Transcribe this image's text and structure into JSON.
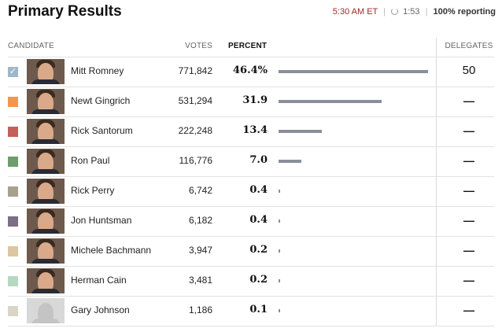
{
  "header": {
    "title": "Primary Results",
    "time": "5:30 AM ET",
    "refresh_countdown": "1:53",
    "reporting": "100% reporting"
  },
  "columns": {
    "candidate": "CANDIDATE",
    "votes": "VOTES",
    "percent": "PERCENT",
    "delegates": "DELEGATES"
  },
  "colors": {
    "bar": "#8a8f99",
    "time": "#a02a2a"
  },
  "candidates": [
    {
      "name": "Mitt Romney",
      "votes": "771,842",
      "percent": "46.4%",
      "percent_value": 46.4,
      "delegates": "50",
      "color": "#9fb8c9",
      "checked": true,
      "placeholder": false
    },
    {
      "name": "Newt Gingrich",
      "votes": "531,294",
      "percent": "31.9",
      "percent_value": 31.9,
      "delegates": "—",
      "color": "#f0964e",
      "checked": false,
      "placeholder": false
    },
    {
      "name": "Rick Santorum",
      "votes": "222,248",
      "percent": "13.4",
      "percent_value": 13.4,
      "delegates": "—",
      "color": "#c2605a",
      "checked": false,
      "placeholder": false
    },
    {
      "name": "Ron Paul",
      "votes": "116,776",
      "percent": "7.0",
      "percent_value": 7.0,
      "delegates": "—",
      "color": "#6f9c6b",
      "checked": false,
      "placeholder": false
    },
    {
      "name": "Rick Perry",
      "votes": "6,742",
      "percent": "0.4",
      "percent_value": 0.4,
      "delegates": "—",
      "color": "#a8a08e",
      "checked": false,
      "placeholder": false
    },
    {
      "name": "Jon Huntsman",
      "votes": "6,182",
      "percent": "0.4",
      "percent_value": 0.4,
      "delegates": "—",
      "color": "#7c6e84",
      "checked": false,
      "placeholder": false
    },
    {
      "name": "Michele Bachmann",
      "votes": "3,947",
      "percent": "0.2",
      "percent_value": 0.2,
      "delegates": "—",
      "color": "#dcc6a2",
      "checked": false,
      "placeholder": false
    },
    {
      "name": "Herman Cain",
      "votes": "3,481",
      "percent": "0.2",
      "percent_value": 0.2,
      "delegates": "—",
      "color": "#b6d8c2",
      "checked": false,
      "placeholder": false
    },
    {
      "name": "Gary Johnson",
      "votes": "1,186",
      "percent": "0.1",
      "percent_value": 0.1,
      "delegates": "—",
      "color": "#d9d6c6",
      "checked": false,
      "placeholder": true
    }
  ]
}
